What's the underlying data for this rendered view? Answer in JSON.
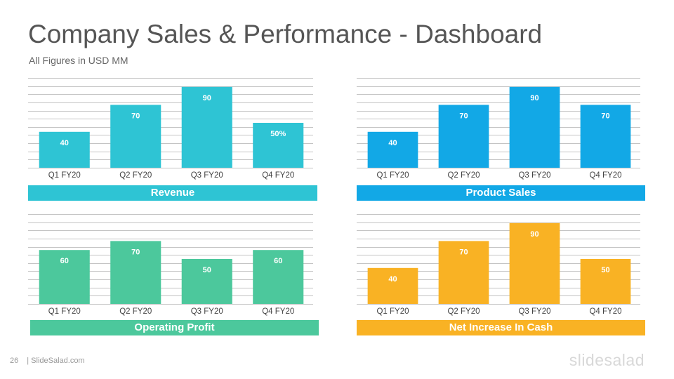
{
  "header": {
    "title": "Company Sales & Performance - Dashboard",
    "subtitle": "All Figures in USD MM"
  },
  "footer": {
    "page_number": "26",
    "site": "| SlideSalad.com",
    "brand": "slidesalad"
  },
  "chart_data": [
    {
      "type": "bar",
      "title": "Revenue",
      "color": "#2ec4d4",
      "categories": [
        "Q1 FY20",
        "Q2 FY20",
        "Q3 FY20",
        "Q4 FY20"
      ],
      "values": [
        40,
        70,
        90,
        50
      ],
      "data_labels": [
        "40",
        "70",
        "90",
        "50%"
      ],
      "ylim": [
        0,
        100
      ],
      "grid": true
    },
    {
      "type": "bar",
      "title": "Product Sales",
      "color": "#12a8e6",
      "categories": [
        "Q1 FY20",
        "Q2 FY20",
        "Q3 FY20",
        "Q4 FY20"
      ],
      "values": [
        40,
        70,
        90,
        70
      ],
      "data_labels": [
        "40",
        "70",
        "90",
        "70"
      ],
      "ylim": [
        0,
        100
      ],
      "grid": true
    },
    {
      "type": "bar",
      "title": "Operating Profit",
      "color": "#4cc89c",
      "categories": [
        "Q1 FY20",
        "Q2 FY20",
        "Q3 FY20",
        "Q4 FY20"
      ],
      "values": [
        60,
        70,
        50,
        60
      ],
      "data_labels": [
        "60",
        "70",
        "50",
        "60"
      ],
      "ylim": [
        0,
        100
      ],
      "grid": true
    },
    {
      "type": "bar",
      "title": "Net Increase In Cash",
      "color": "#f9b224",
      "categories": [
        "Q1 FY20",
        "Q2 FY20",
        "Q3 FY20",
        "Q4 FY20"
      ],
      "values": [
        40,
        70,
        90,
        50
      ],
      "data_labels": [
        "40",
        "70",
        "90",
        "50"
      ],
      "ylim": [
        0,
        100
      ],
      "grid": true
    }
  ]
}
